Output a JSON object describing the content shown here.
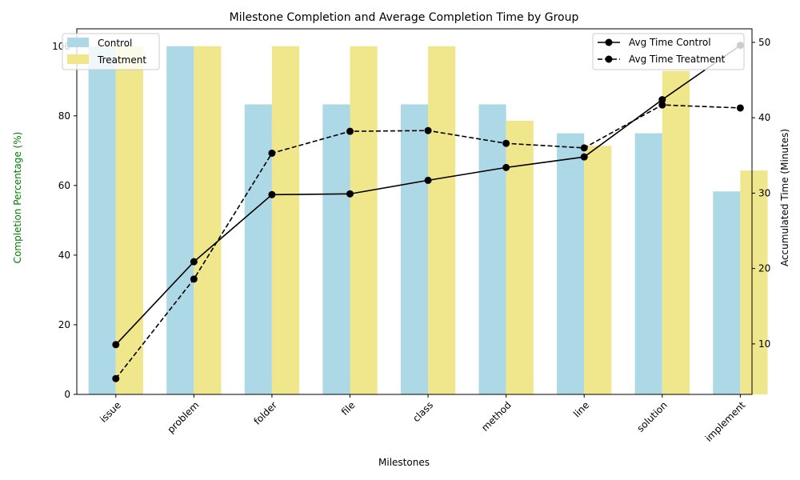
{
  "chart_data": {
    "type": "bar",
    "title": "Milestone Completion and Average Completion Time by Group",
    "xlabel": "Milestones",
    "ylabel_left": "Completion Percentage (%)",
    "ylabel_right": "Accumulated Time (Minutes)",
    "ylabel_left_color": "#008000",
    "categories": [
      "issue",
      "problem",
      "folder",
      "file",
      "class",
      "method",
      "line",
      "solution",
      "implement"
    ],
    "ylim_left": [
      0,
      105
    ],
    "ylim_right": [
      3.3,
      51.8
    ],
    "yticks_left": [
      0,
      20,
      40,
      60,
      80,
      100
    ],
    "yticks_right": [
      10,
      20,
      30,
      40,
      50
    ],
    "bar_series": [
      {
        "name": "Control",
        "color": "#add8e6",
        "values": [
          100,
          100,
          83.3,
          83.3,
          83.3,
          83.3,
          75,
          75,
          58.3
        ]
      },
      {
        "name": "Treatment",
        "color": "#f0e68c",
        "values": [
          100,
          100,
          100,
          100,
          100,
          78.6,
          71.4,
          92.9,
          64.3
        ]
      }
    ],
    "line_series": [
      {
        "name": "Avg Time Control",
        "color": "#000000",
        "dash": false,
        "values": [
          9.9,
          20.9,
          29.8,
          29.9,
          31.7,
          33.4,
          34.8,
          42.4,
          49.6
        ]
      },
      {
        "name": "Avg Time Treatment",
        "color": "#000000",
        "dash": true,
        "values": [
          5.4,
          18.6,
          35.3,
          38.2,
          38.3,
          36.6,
          36.0,
          41.7,
          41.3
        ]
      }
    ],
    "legend_bars_position": "top-left",
    "legend_lines_position": "top-right",
    "grid": false
  }
}
